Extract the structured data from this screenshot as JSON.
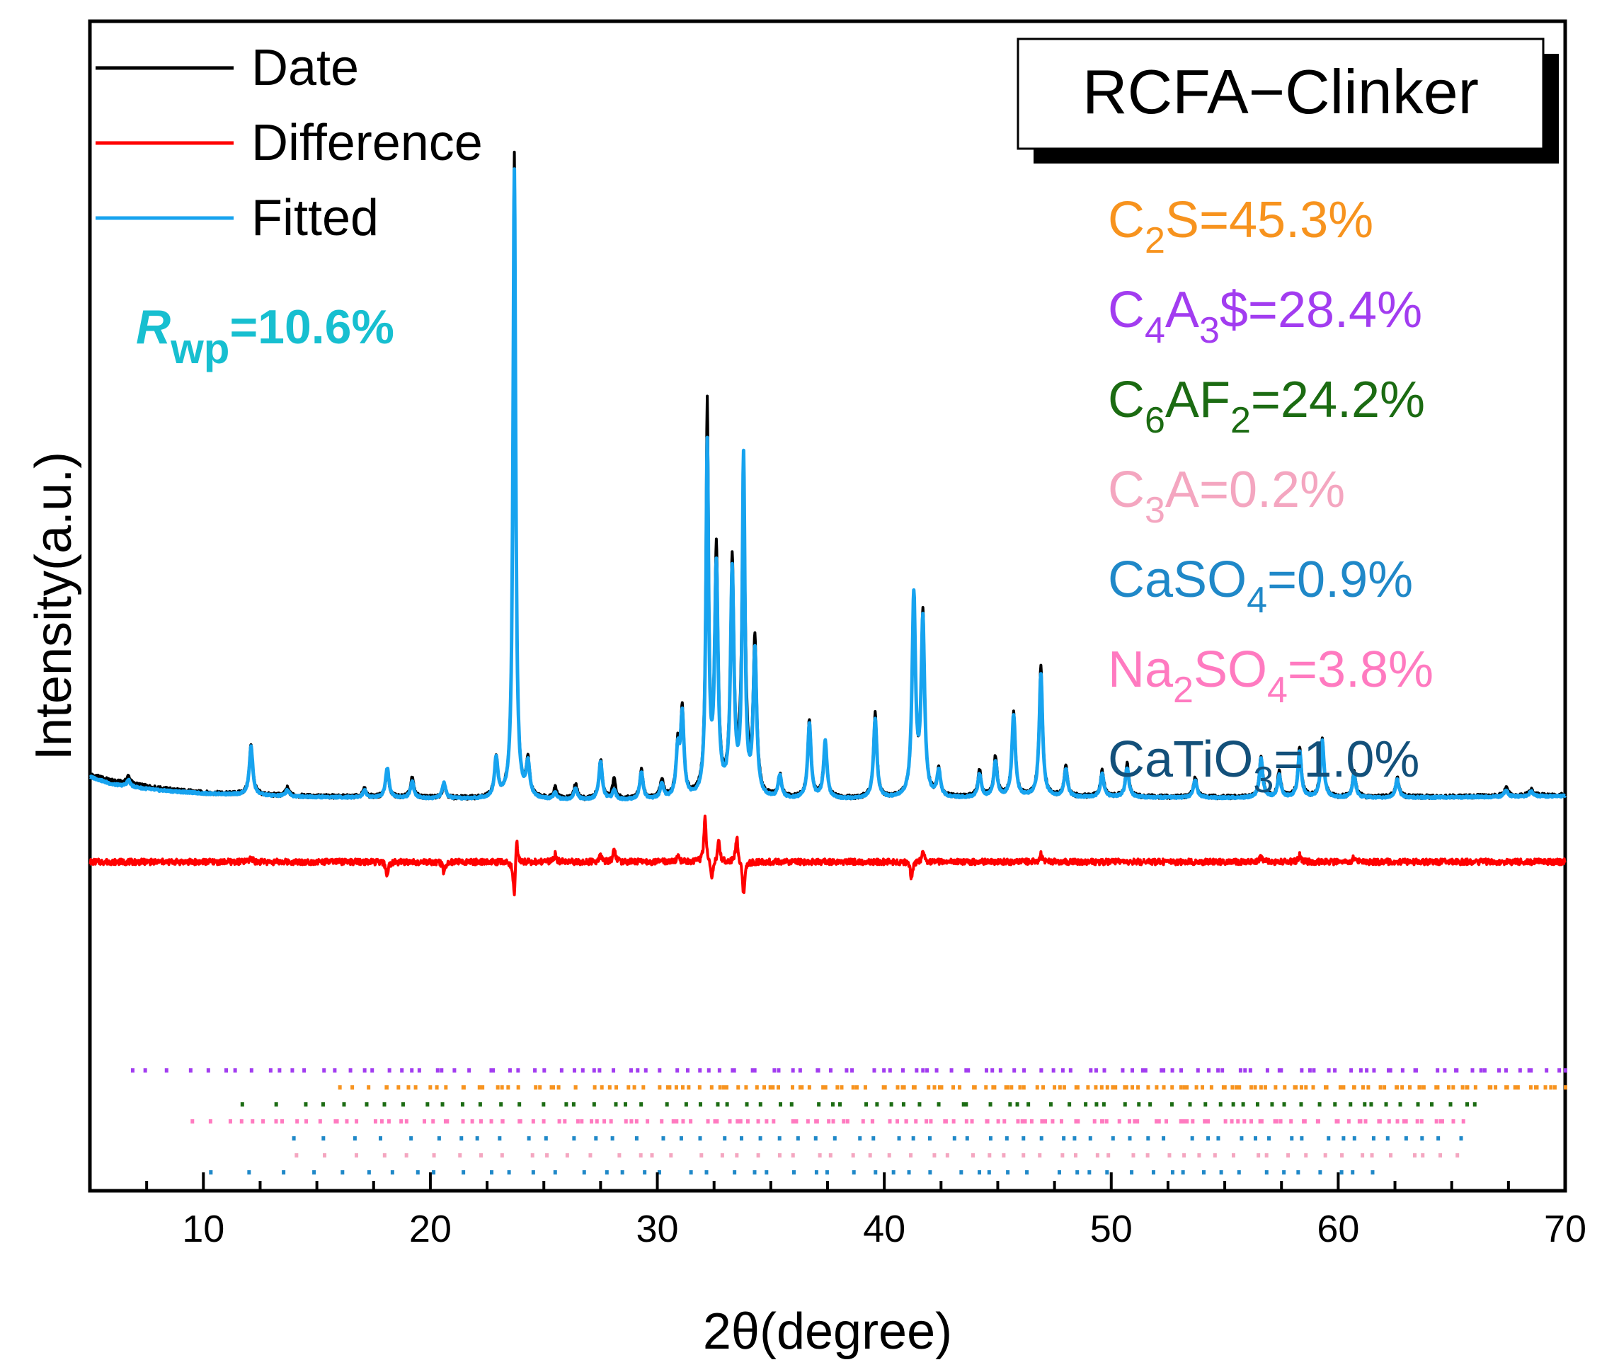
{
  "chart_data": {
    "type": "line",
    "title": "RCFA−Clinker",
    "xlabel": "2θ(degree)",
    "ylabel": "Intensity(a.u.)",
    "xlim": [
      5,
      70
    ],
    "ylim": [
      -0.55,
      1.0
    ],
    "x_ticks": [
      10,
      20,
      30,
      40,
      50,
      60,
      70
    ],
    "x_tick_labels": [
      "10",
      "20",
      "30",
      "40",
      "50",
      "60",
      "70"
    ],
    "y_tick_labels_shown": false,
    "grid": false,
    "legend_position": "top-left",
    "rwp": {
      "symbol": "R",
      "subscript": "wp",
      "value": "=10.6%",
      "color": "#17bfd0"
    },
    "series": [
      {
        "name": "Date",
        "color": "#000000",
        "baseline_points": [
          [
            5,
            0.095
          ],
          [
            6,
            0.085
          ],
          [
            8,
            0.074
          ],
          [
            10,
            0.067
          ],
          [
            14,
            0.062
          ],
          [
            18,
            0.06
          ],
          [
            22,
            0.058
          ],
          [
            24,
            0.057
          ],
          [
            26,
            0.056
          ],
          [
            30,
            0.056
          ],
          [
            35,
            0.057
          ],
          [
            40,
            0.058
          ],
          [
            45,
            0.06
          ],
          [
            50,
            0.061
          ],
          [
            55,
            0.06
          ],
          [
            60,
            0.06
          ],
          [
            65,
            0.061
          ],
          [
            70,
            0.064
          ]
        ],
        "peaks": [
          [
            6.7,
            0.012
          ],
          [
            12.1,
            0.078
          ],
          [
            13.7,
            0.012
          ],
          [
            17.1,
            0.012
          ],
          [
            18.1,
            0.04
          ],
          [
            19.2,
            0.03
          ],
          [
            20.6,
            0.02
          ],
          [
            22.9,
            0.06
          ],
          [
            23.7,
            1.0
          ],
          [
            24.3,
            0.055
          ],
          [
            25.5,
            0.018
          ],
          [
            26.4,
            0.022
          ],
          [
            27.5,
            0.062
          ],
          [
            28.1,
            0.03
          ],
          [
            29.3,
            0.044
          ],
          [
            30.2,
            0.03
          ],
          [
            30.9,
            0.075
          ],
          [
            31.1,
            0.13
          ],
          [
            32.2,
            0.6
          ],
          [
            32.6,
            0.375
          ],
          [
            33.3,
            0.36
          ],
          [
            33.8,
            0.47
          ],
          [
            34.3,
            0.24
          ],
          [
            35.4,
            0.034
          ],
          [
            36.7,
            0.12
          ],
          [
            37.4,
            0.09
          ],
          [
            39.6,
            0.13
          ],
          [
            41.3,
            0.3
          ],
          [
            41.7,
            0.28
          ],
          [
            42.4,
            0.04
          ],
          [
            44.2,
            0.04
          ],
          [
            44.9,
            0.062
          ],
          [
            45.7,
            0.13
          ],
          [
            46.9,
            0.2
          ],
          [
            48.0,
            0.045
          ],
          [
            49.6,
            0.04
          ],
          [
            50.7,
            0.05
          ],
          [
            53.7,
            0.03
          ],
          [
            56.6,
            0.065
          ],
          [
            57.4,
            0.038
          ],
          [
            58.3,
            0.078
          ],
          [
            59.3,
            0.09
          ],
          [
            60.7,
            0.04
          ],
          [
            62.6,
            0.03
          ],
          [
            67.4,
            0.012
          ],
          [
            68.5,
            0.01
          ]
        ]
      },
      {
        "name": "Difference",
        "color": "#ff0000",
        "baseline": -0.04,
        "deviations": [
          [
            12.1,
            0.008
          ],
          [
            18.1,
            -0.022
          ],
          [
            20.6,
            -0.016
          ],
          [
            23.7,
            -0.06
          ],
          [
            23.8,
            0.045
          ],
          [
            25.5,
            0.012
          ],
          [
            27.5,
            0.012
          ],
          [
            28.1,
            0.02
          ],
          [
            30.9,
            0.012
          ],
          [
            32.1,
            0.068
          ],
          [
            32.4,
            -0.03
          ],
          [
            32.7,
            0.035
          ],
          [
            33.5,
            0.04
          ],
          [
            33.8,
            -0.052
          ],
          [
            41.2,
            -0.025
          ],
          [
            41.7,
            0.018
          ],
          [
            46.9,
            0.012
          ],
          [
            56.6,
            0.01
          ],
          [
            58.3,
            0.01
          ],
          [
            60.7,
            0.008
          ]
        ]
      },
      {
        "name": "Fitted",
        "color": "#17a3ef",
        "baseline_points": [
          [
            5,
            0.092
          ],
          [
            6,
            0.08
          ],
          [
            8,
            0.071
          ],
          [
            10,
            0.066
          ],
          [
            14,
            0.061
          ],
          [
            18,
            0.059
          ],
          [
            22,
            0.057
          ],
          [
            24,
            0.056
          ],
          [
            26,
            0.055
          ],
          [
            30,
            0.055
          ],
          [
            35,
            0.056
          ],
          [
            40,
            0.057
          ],
          [
            45,
            0.059
          ],
          [
            50,
            0.06
          ],
          [
            55,
            0.059
          ],
          [
            60,
            0.059
          ],
          [
            65,
            0.06
          ],
          [
            70,
            0.062
          ]
        ],
        "peaks": [
          [
            6.7,
            0.01
          ],
          [
            12.1,
            0.075
          ],
          [
            13.7,
            0.01
          ],
          [
            17.1,
            0.011
          ],
          [
            18.1,
            0.046
          ],
          [
            19.2,
            0.026
          ],
          [
            20.6,
            0.024
          ],
          [
            22.9,
            0.06
          ],
          [
            23.7,
            0.975
          ],
          [
            24.3,
            0.052
          ],
          [
            25.5,
            0.01
          ],
          [
            26.4,
            0.018
          ],
          [
            27.5,
            0.06
          ],
          [
            28.1,
            0.014
          ],
          [
            29.3,
            0.042
          ],
          [
            30.2,
            0.024
          ],
          [
            30.9,
            0.07
          ],
          [
            31.1,
            0.125
          ],
          [
            32.2,
            0.54
          ],
          [
            32.6,
            0.35
          ],
          [
            33.3,
            0.345
          ],
          [
            33.8,
            0.52
          ],
          [
            34.3,
            0.225
          ],
          [
            35.4,
            0.034
          ],
          [
            36.7,
            0.115
          ],
          [
            37.4,
            0.088
          ],
          [
            39.6,
            0.122
          ],
          [
            41.3,
            0.31
          ],
          [
            41.7,
            0.27
          ],
          [
            42.4,
            0.04
          ],
          [
            44.2,
            0.036
          ],
          [
            44.9,
            0.056
          ],
          [
            45.7,
            0.128
          ],
          [
            46.9,
            0.19
          ],
          [
            48.0,
            0.043
          ],
          [
            49.6,
            0.036
          ],
          [
            50.7,
            0.046
          ],
          [
            53.7,
            0.028
          ],
          [
            56.6,
            0.06
          ],
          [
            57.4,
            0.034
          ],
          [
            58.3,
            0.072
          ],
          [
            59.3,
            0.088
          ],
          [
            60.7,
            0.036
          ],
          [
            62.6,
            0.028
          ],
          [
            67.4,
            0.01
          ],
          [
            68.5,
            0.008
          ]
        ]
      }
    ],
    "phases": [
      {
        "label_base": "C",
        "label_parts": [
          [
            "C",
            ""
          ],
          [
            "2",
            "sub"
          ],
          [
            "S=45.3%",
            ""
          ]
        ],
        "color": "#f7931e"
      },
      {
        "label_parts": [
          [
            "C",
            ""
          ],
          [
            "4",
            "sub"
          ],
          [
            "A",
            ""
          ],
          [
            "3",
            "sub"
          ],
          [
            "$=28.4%",
            ""
          ]
        ],
        "color": "#a23cf0"
      },
      {
        "label_parts": [
          [
            "C",
            ""
          ],
          [
            "6",
            "sub"
          ],
          [
            "AF",
            ""
          ],
          [
            "2",
            "sub"
          ],
          [
            "=24.2%",
            ""
          ]
        ],
        "color": "#1b6b12"
      },
      {
        "label_parts": [
          [
            "C",
            ""
          ],
          [
            "3",
            "sub"
          ],
          [
            "A=0.2%",
            ""
          ]
        ],
        "color": "#f4a6c0"
      },
      {
        "label_parts": [
          [
            "CaSO",
            ""
          ],
          [
            "4",
            "sub"
          ],
          [
            "=0.9%",
            ""
          ]
        ],
        "color": "#1f88c8"
      },
      {
        "label_parts": [
          [
            "Na",
            ""
          ],
          [
            "2",
            "sub"
          ],
          [
            "SO",
            ""
          ],
          [
            "4",
            "sub"
          ],
          [
            "=3.8%",
            ""
          ]
        ],
        "color": "#ff7ac0"
      },
      {
        "label_parts": [
          [
            "CaTiO",
            ""
          ],
          [
            "3",
            "sub"
          ],
          [
            "=1.0%",
            ""
          ]
        ],
        "color": "#13507a"
      }
    ],
    "reflection_ticks": [
      {
        "phase": "C4A3$",
        "color": "#a23cf0",
        "x_min": 6.7,
        "x_max": 70,
        "count": 130
      },
      {
        "phase": "C2S",
        "color": "#f7931e",
        "x_min": 16.0,
        "x_max": 70,
        "count": 170
      },
      {
        "phase": "C6AF2",
        "color": "#1b6b12",
        "x_min": 11.7,
        "x_max": 66,
        "count": 75
      },
      {
        "phase": "Na2SO4",
        "color": "#ff7ac0",
        "x_min": 9.5,
        "x_max": 65.5,
        "count": 150
      },
      {
        "phase": "CaSO4",
        "color": "#1f88c8",
        "x_min": 13.9,
        "x_max": 65.4,
        "count": 60
      },
      {
        "phase": "C3A",
        "color": "#f4a6c0",
        "x_min": 13.8,
        "x_max": 65.4,
        "count": 60
      },
      {
        "phase": "CaTiO3",
        "color": "#1f88c8",
        "x_min": 10.2,
        "x_max": 61.5,
        "count": 55
      }
    ]
  }
}
